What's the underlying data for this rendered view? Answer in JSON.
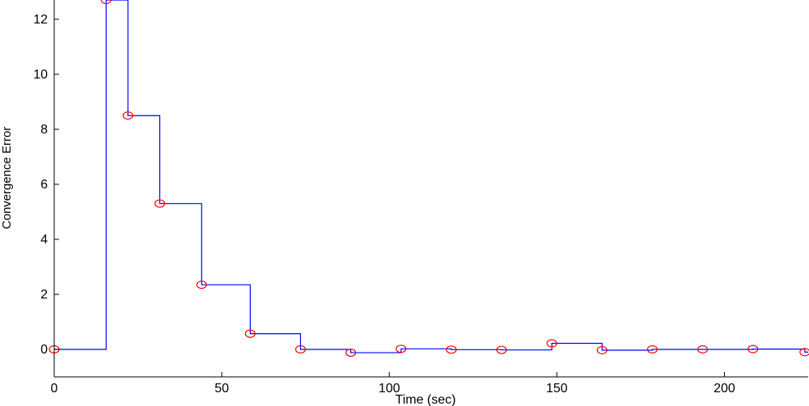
{
  "chart_data": {
    "type": "line",
    "title": "",
    "xlabel": "Time (sec)",
    "ylabel": "Convergence Error",
    "xlim": [
      0,
      225
    ],
    "ylim": [
      -1,
      12.7
    ],
    "x_ticks": [
      0,
      50,
      100,
      150,
      200
    ],
    "y_ticks": [
      0,
      2,
      4,
      6,
      8,
      10,
      12
    ],
    "grid": false,
    "legend": "none",
    "line_style": "step-post",
    "colors": {
      "line": "#0000ff",
      "marker": "#ff0000",
      "axis": "#000000"
    },
    "marker": "circle",
    "series": [
      {
        "x": [
          0,
          15.5,
          22,
          31.5,
          44,
          58.5,
          73.5,
          88.5,
          103.5,
          118.5,
          133.5,
          148.5,
          163.5,
          178.5,
          193.5,
          208.5,
          224
        ],
        "values": [
          0,
          12.7,
          8.5,
          5.3,
          2.35,
          0.57,
          0,
          -0.12,
          0.02,
          -0.01,
          -0.02,
          0.22,
          -0.03,
          0,
          0,
          0.01,
          -0.1
        ]
      }
    ]
  }
}
